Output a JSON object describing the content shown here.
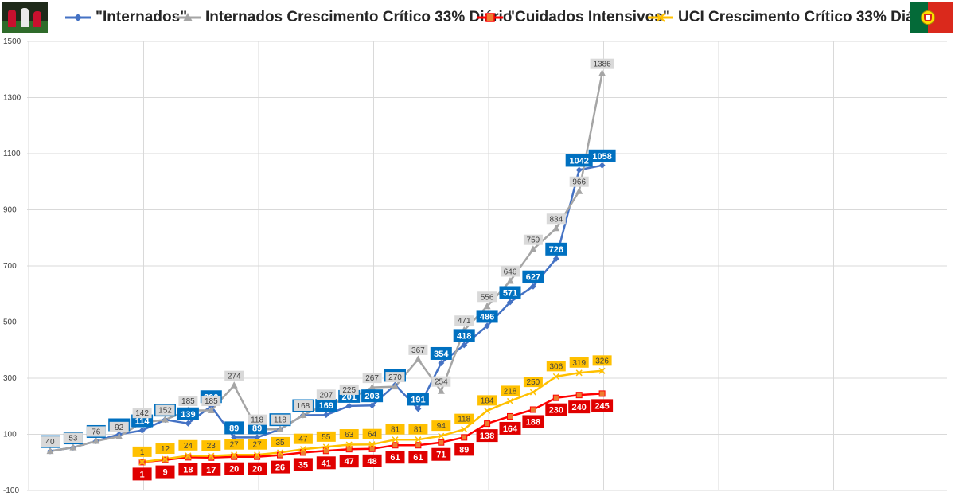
{
  "chart_data": {
    "type": "line",
    "title": "",
    "xlabel": "",
    "ylabel": "",
    "ylim": [
      -100,
      1500
    ],
    "yticks": [
      -100,
      100,
      300,
      500,
      700,
      900,
      1100,
      1300,
      1500
    ],
    "grid": "on",
    "legend_placement": "top",
    "series": [
      {
        "name": "\"Internados\"",
        "color": "#4472c4",
        "label_color": "#0070c0",
        "marker": "diamond",
        "values": [
          40,
          53,
          76,
          100,
          114,
          152,
          139,
          200,
          89,
          89,
          118,
          168,
          169,
          201,
          203,
          276,
          191,
          354,
          418,
          486,
          571,
          627,
          726,
          1042,
          1058
        ]
      },
      {
        "name": "Internados Crescimento Crítico 33% Diário",
        "color": "#a5a5a5",
        "label_color": "#d9d9d9",
        "marker": "triangle",
        "values": [
          40,
          53,
          76,
          92,
          142,
          152,
          185,
          185,
          274,
          118,
          118,
          168,
          207,
          225,
          267,
          270,
          367,
          254,
          471,
          556,
          646,
          759,
          834,
          966,
          1386
        ]
      },
      {
        "name": "\"Cuidados Intensivos\"",
        "color": "#ff0000",
        "label_color": "#e00000",
        "marker": "square",
        "values": [
          null,
          null,
          null,
          null,
          1,
          9,
          18,
          17,
          20,
          20,
          26,
          35,
          41,
          47,
          48,
          61,
          61,
          71,
          89,
          138,
          164,
          188,
          230,
          240,
          245
        ]
      },
      {
        "name": "UCI Crescimento Crítico 33% Diário",
        "color": "#ffc000",
        "label_color": "#ffc000",
        "marker": "x",
        "values": [
          null,
          null,
          null,
          null,
          1,
          12,
          24,
          23,
          27,
          27,
          35,
          47,
          55,
          63,
          64,
          81,
          81,
          94,
          118,
          184,
          218,
          250,
          306,
          319,
          326
        ]
      }
    ]
  },
  "branding": {
    "logo_icon": "football-team-logo",
    "flag_icon": "portugal-flag"
  }
}
